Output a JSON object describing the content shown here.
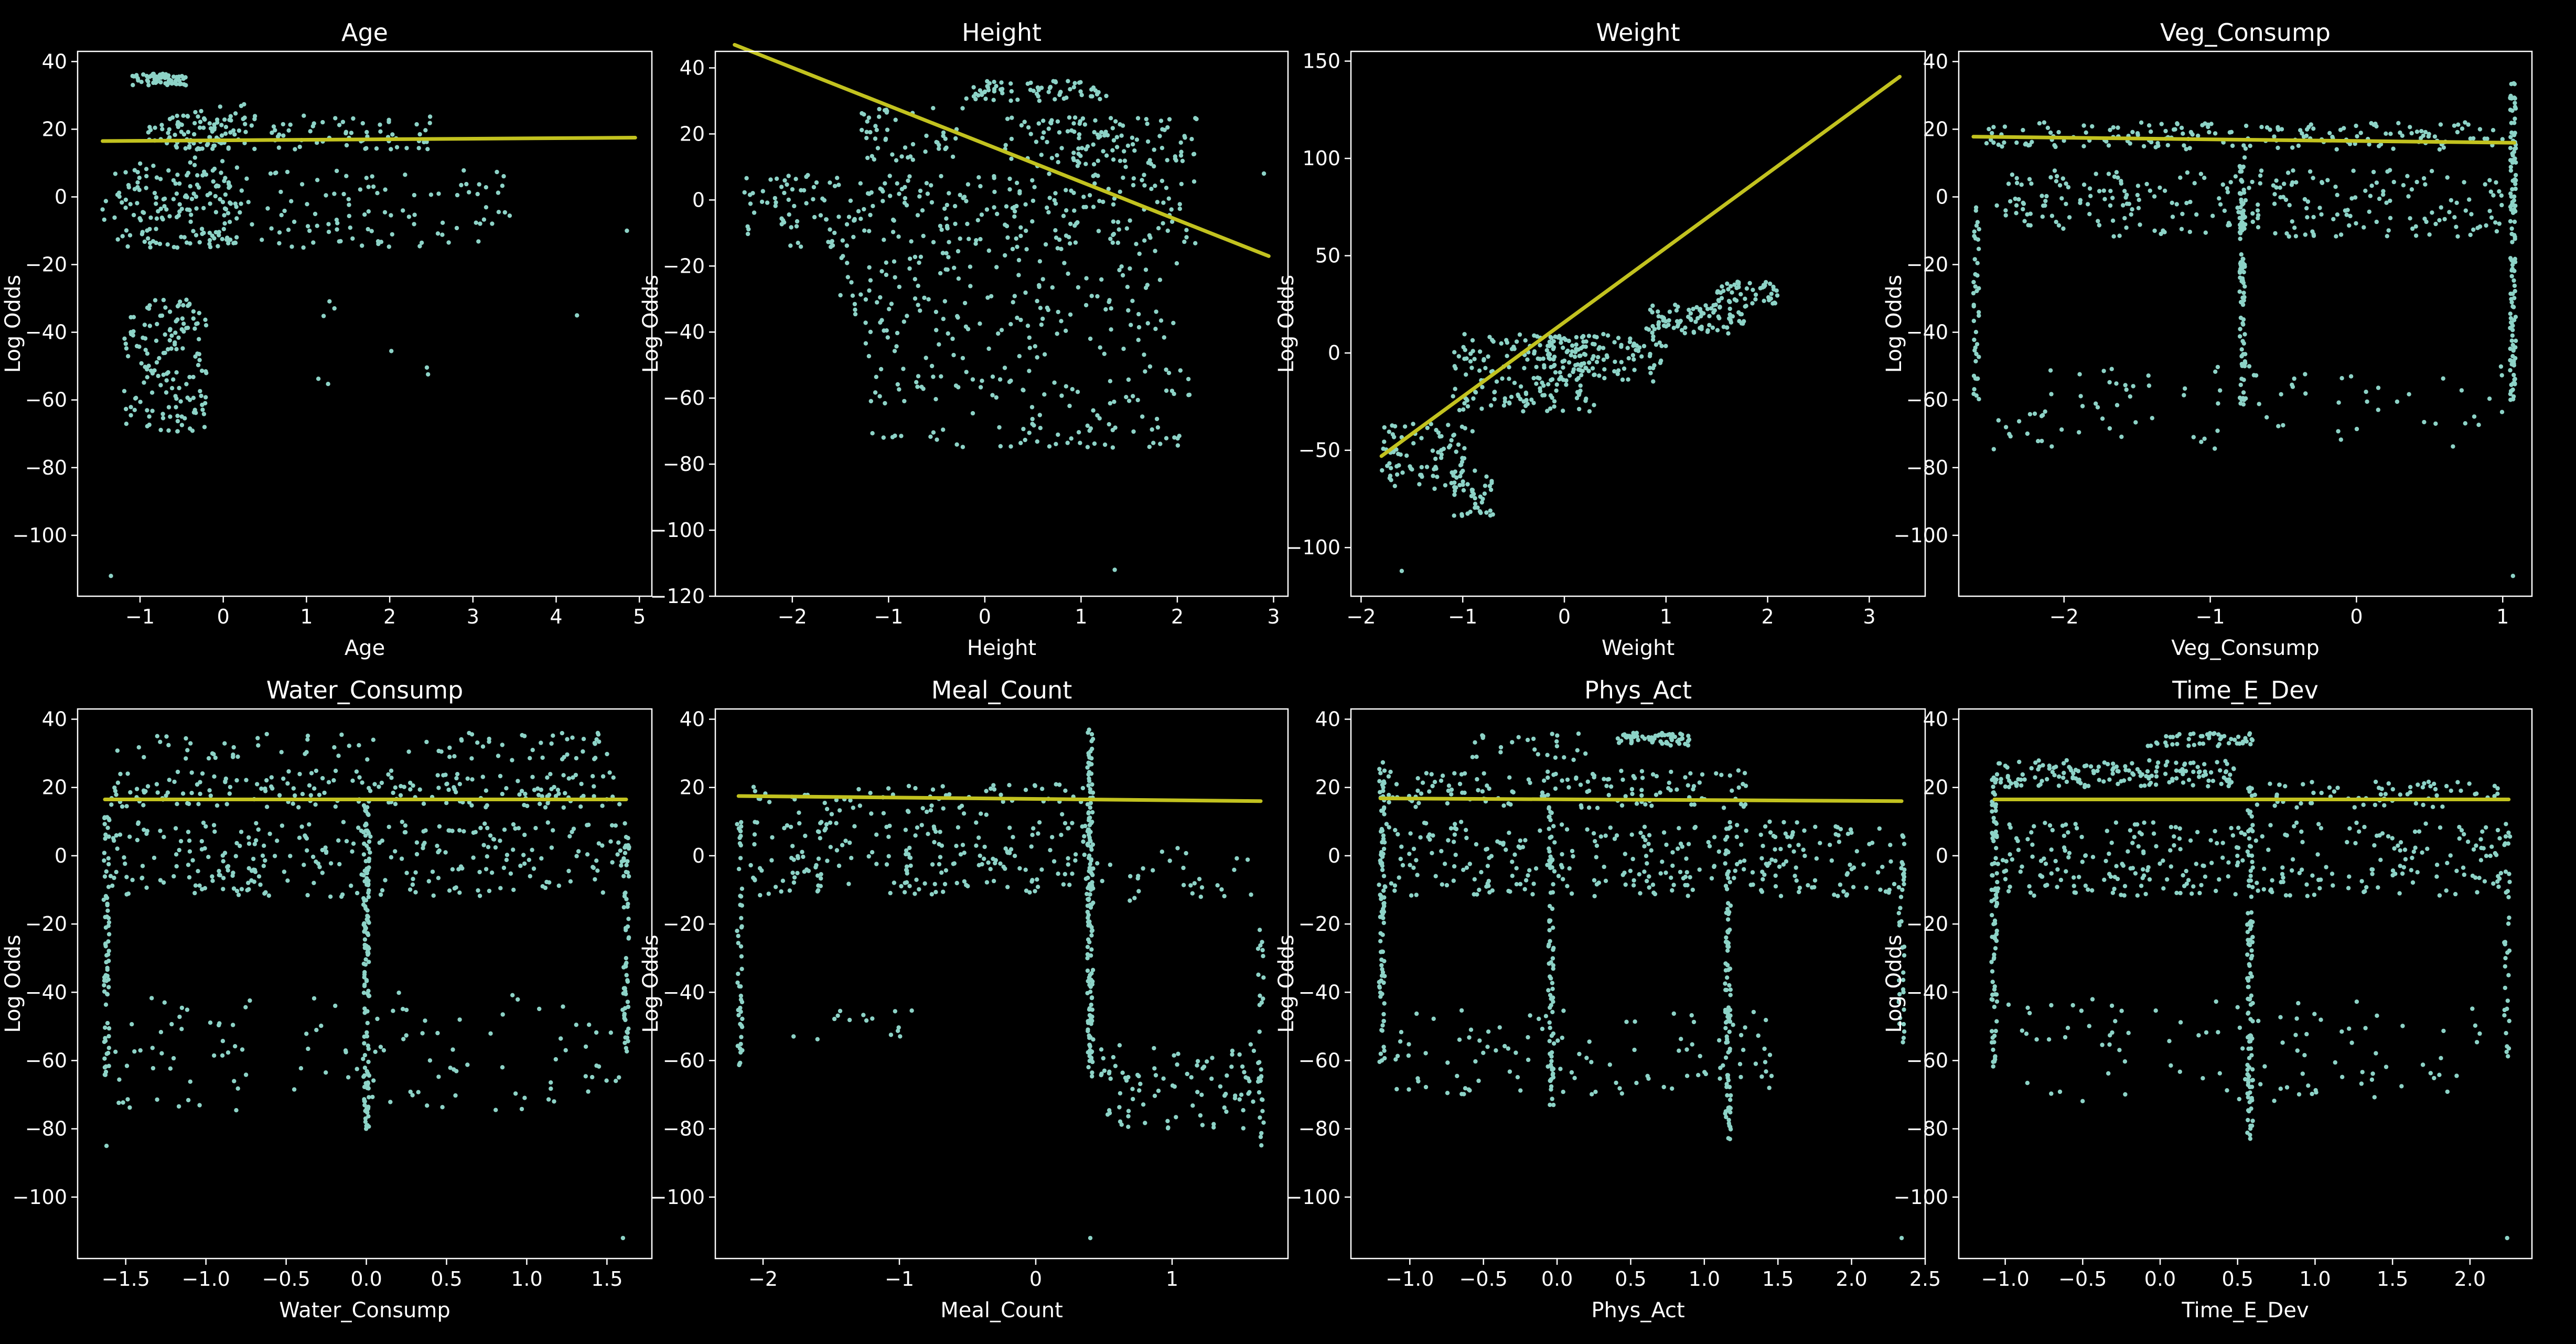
{
  "figure": {
    "background": "#000000",
    "point_color": "#8dd3c7",
    "line_color": "#c2c21f",
    "axis_color": "#ffffff"
  },
  "chart_data": [
    {
      "type": "scatter",
      "title": "Age",
      "xlabel": "Age",
      "ylabel": "Log Odds",
      "xlim": [
        -1.75,
        5.15
      ],
      "ylim": [
        -118,
        43
      ],
      "xticks": [
        -1,
        0,
        1,
        2,
        3,
        4,
        5
      ],
      "xtick_labels": [
        "−1",
        "0",
        "1",
        "2",
        "3",
        "4",
        "5"
      ],
      "yticks": [
        40,
        20,
        0,
        -20,
        -40,
        -60,
        -80,
        -100
      ],
      "ytick_labels": [
        "40",
        "20",
        "0",
        "−20",
        "−40",
        "−60",
        "−80",
        "−100"
      ],
      "fit_line": {
        "x": [
          -1.45,
          4.95
        ],
        "y": [
          16.5,
          17.5
        ]
      },
      "clusters": [
        {
          "x": [
            -1.1,
            -0.45
          ],
          "y": [
            33,
            36.5
          ],
          "n": 60
        },
        {
          "x": [
            -1.45,
            0.1
          ],
          "y": [
            -15,
            10
          ],
          "n": 140
        },
        {
          "x": [
            -1.2,
            -0.2
          ],
          "y": [
            -70,
            -30
          ],
          "n": 150
        },
        {
          "x": [
            -0.9,
            0.4
          ],
          "y": [
            14,
            24
          ],
          "n": 80
        },
        {
          "x": [
            0.0,
            3.5
          ],
          "y": [
            -15,
            8
          ],
          "n": 110
        },
        {
          "x": [
            0.5,
            2.5
          ],
          "y": [
            14,
            24
          ],
          "n": 60
        },
        {
          "x": [
            -0.6,
            0.3
          ],
          "y": [
            -5,
            30
          ],
          "n": 50
        },
        {
          "x": [
            1.0,
            2.5
          ],
          "y": [
            -60,
            -30
          ],
          "n": 8
        }
      ],
      "outliers": [
        {
          "x": [
            -1.35
          ],
          "y": [
            -112
          ]
        },
        {
          "x": [
            4.25
          ],
          "y": [
            -35
          ]
        },
        {
          "x": [
            4.85
          ],
          "y": [
            -10
          ]
        }
      ]
    },
    {
      "type": "scatter",
      "title": "Height",
      "xlabel": "Height",
      "ylabel": "Log Odds",
      "xlim": [
        -2.8,
        3.15
      ],
      "ylim": [
        -120,
        45
      ],
      "xticks": [
        -2,
        -1,
        0,
        1,
        2,
        3
      ],
      "xtick_labels": [
        "−2",
        "−1",
        "0",
        "1",
        "2",
        "3"
      ],
      "yticks": [
        40,
        20,
        0,
        -20,
        -40,
        -60,
        -80,
        -100,
        -120
      ],
      "ytick_labels": [
        "40",
        "20",
        "0",
        "−20",
        "−40",
        "−60",
        "−80",
        "−100",
        "−120"
      ],
      "fit_line": {
        "x": [
          -2.6,
          2.95
        ],
        "y": [
          47,
          -17
        ]
      },
      "clusters": [
        {
          "x": [
            -0.2,
            1.3
          ],
          "y": [
            30,
            36
          ],
          "n": 70
        },
        {
          "x": [
            0.2,
            2.2
          ],
          "y": [
            10,
            25
          ],
          "n": 120
        },
        {
          "x": [
            -1.3,
            -0.2
          ],
          "y": [
            12,
            28
          ],
          "n": 50
        },
        {
          "x": [
            -2.5,
            2.2
          ],
          "y": [
            -15,
            8
          ],
          "n": 260
        },
        {
          "x": [
            -1.5,
            2.0
          ],
          "y": [
            -48,
            -15
          ],
          "n": 160
        },
        {
          "x": [
            -1.2,
            2.2
          ],
          "y": [
            -75,
            -50
          ],
          "n": 120
        }
      ],
      "outliers": [
        {
          "x": [
            1.35
          ],
          "y": [
            -112
          ]
        },
        {
          "x": [
            2.9
          ],
          "y": [
            8
          ]
        }
      ]
    },
    {
      "type": "scatter",
      "title": "Weight",
      "xlabel": "Weight",
      "ylabel": "Log Odds",
      "xlim": [
        -2.1,
        3.55
      ],
      "ylim": [
        -125,
        155
      ],
      "xticks": [
        -2,
        -1,
        0,
        1,
        2,
        3
      ],
      "xtick_labels": [
        "−2",
        "−1",
        "0",
        "1",
        "2",
        "3"
      ],
      "yticks": [
        150,
        100,
        50,
        0,
        -50,
        -100
      ],
      "ytick_labels": [
        "150",
        "100",
        "50",
        "0",
        "−50",
        "−100"
      ],
      "fit_line": {
        "x": [
          -1.8,
          3.3
        ],
        "y": [
          -53,
          142
        ]
      },
      "clusters": [
        {
          "x": [
            -1.8,
            -0.9
          ],
          "y": [
            -70,
            -35
          ],
          "n": 90
        },
        {
          "x": [
            -1.1,
            -0.7
          ],
          "y": [
            -85,
            -60
          ],
          "n": 40
        },
        {
          "x": [
            -1.1,
            0.3
          ],
          "y": [
            -30,
            10
          ],
          "n": 160
        },
        {
          "x": [
            -0.3,
            1.0
          ],
          "y": [
            -15,
            10
          ],
          "n": 120
        },
        {
          "x": [
            0.8,
            1.8
          ],
          "y": [
            10,
            25
          ],
          "n": 90
        },
        {
          "x": [
            1.5,
            2.1
          ],
          "y": [
            25,
            37
          ],
          "n": 50
        }
      ],
      "outliers": [
        {
          "x": [
            -1.6
          ],
          "y": [
            -112
          ]
        }
      ]
    },
    {
      "type": "scatter",
      "title": "Veg_Consump",
      "xlabel": "Veg_Consump",
      "ylabel": "Log Odds",
      "xlim": [
        -2.72,
        1.2
      ],
      "ylim": [
        -118,
        43
      ],
      "xticks": [
        -2,
        -1,
        0,
        1
      ],
      "xtick_labels": [
        "−2",
        "−1",
        "0",
        "1"
      ],
      "yticks": [
        40,
        20,
        0,
        -20,
        -40,
        -60,
        -80,
        -100
      ],
      "ytick_labels": [
        "40",
        "20",
        "0",
        "−20",
        "−40",
        "−60",
        "−80",
        "−100"
      ],
      "fit_line": {
        "x": [
          -2.62,
          1.08
        ],
        "y": [
          17.8,
          16.0
        ]
      },
      "clusters": [
        {
          "x": [
            -2.55,
            1.0
          ],
          "y": [
            14,
            22
          ],
          "n": 180
        },
        {
          "x": [
            -2.55,
            1.0
          ],
          "y": [
            -12,
            8
          ],
          "n": 260
        },
        {
          "x": [
            -2.5,
            1.0
          ],
          "y": [
            -75,
            -50
          ],
          "n": 90
        }
      ],
      "columns": [
        {
          "x": -2.6,
          "y": [
            -62,
            0
          ],
          "n": 40
        },
        {
          "x": -0.78,
          "y": [
            -62,
            12
          ],
          "n": 100
        },
        {
          "x": 1.07,
          "y": [
            -60,
            37
          ],
          "n": 130
        }
      ],
      "outliers": [
        {
          "x": [
            1.07
          ],
          "y": [
            -112
          ]
        }
      ]
    },
    {
      "type": "scatter",
      "title": "Water_Consump",
      "xlabel": "Water_Consump",
      "ylabel": "Log Odds",
      "xlim": [
        -1.8,
        1.78
      ],
      "ylim": [
        -118,
        43
      ],
      "xticks": [
        -1.5,
        -1.0,
        -0.5,
        0.0,
        0.5,
        1.0,
        1.5
      ],
      "xtick_labels": [
        "−1.5",
        "−1.0",
        "−0.5",
        "0.0",
        "0.5",
        "1.0",
        "1.5"
      ],
      "yticks": [
        40,
        20,
        0,
        -20,
        -40,
        -60,
        -80,
        -100
      ],
      "ytick_labels": [
        "40",
        "20",
        "0",
        "−20",
        "−40",
        "−60",
        "−80",
        "−100"
      ],
      "fit_line": {
        "x": [
          -1.63,
          1.62
        ],
        "y": [
          16.5,
          16.5
        ]
      },
      "clusters": [
        {
          "x": [
            -1.6,
            1.6
          ],
          "y": [
            28,
            36
          ],
          "n": 80
        },
        {
          "x": [
            -1.6,
            1.6
          ],
          "y": [
            14,
            25
          ],
          "n": 200
        },
        {
          "x": [
            -1.6,
            1.6
          ],
          "y": [
            -12,
            10
          ],
          "n": 280
        },
        {
          "x": [
            -1.6,
            1.6
          ],
          "y": [
            -75,
            -40
          ],
          "n": 120
        }
      ],
      "columns": [
        {
          "x": -1.62,
          "y": [
            -65,
            20
          ],
          "n": 70
        },
        {
          "x": 0.0,
          "y": [
            -80,
            15
          ],
          "n": 130
        },
        {
          "x": 1.62,
          "y": [
            -62,
            10
          ],
          "n": 60
        }
      ],
      "outliers": [
        {
          "x": [
            1.6
          ],
          "y": [
            -112
          ]
        },
        {
          "x": [
            -1.62
          ],
          "y": [
            -85
          ]
        }
      ]
    },
    {
      "type": "scatter",
      "title": "Meal_Count",
      "xlabel": "Meal_Count",
      "ylabel": "Log Odds",
      "xlim": [
        -2.35,
        1.85
      ],
      "ylim": [
        -118,
        43
      ],
      "xticks": [
        -2,
        -1,
        0,
        1
      ],
      "xtick_labels": [
        "−2",
        "−1",
        "0",
        "1"
      ],
      "yticks": [
        40,
        20,
        0,
        -20,
        -40,
        -60,
        -80,
        -100
      ],
      "ytick_labels": [
        "40",
        "20",
        "0",
        "−20",
        "−40",
        "−60",
        "−80",
        "−100"
      ],
      "fit_line": {
        "x": [
          -2.18,
          1.65
        ],
        "y": [
          17.5,
          16.0
        ]
      },
      "clusters": [
        {
          "x": [
            -2.1,
            0.4
          ],
          "y": [
            12,
            21
          ],
          "n": 70
        },
        {
          "x": [
            -2.1,
            0.4
          ],
          "y": [
            -12,
            10
          ],
          "n": 200
        },
        {
          "x": [
            0.45,
            1.6
          ],
          "y": [
            -15,
            5
          ],
          "n": 30
        },
        {
          "x": [
            0.45,
            1.6
          ],
          "y": [
            -80,
            -55
          ],
          "n": 90
        },
        {
          "x": [
            -1.9,
            -0.9
          ],
          "y": [
            -55,
            -45
          ],
          "n": 15
        }
      ],
      "columns": [
        {
          "x": -2.17,
          "y": [
            -62,
            10
          ],
          "n": 50
        },
        {
          "x": 0.4,
          "y": [
            -65,
            37
          ],
          "n": 160
        },
        {
          "x": 1.65,
          "y": [
            -85,
            -20
          ],
          "n": 30
        }
      ],
      "outliers": [
        {
          "x": [
            0.4
          ],
          "y": [
            -112
          ]
        }
      ]
    },
    {
      "type": "scatter",
      "title": "Phys_Act",
      "xlabel": "Phys_Act",
      "ylabel": "Log Odds",
      "xlim": [
        -1.4,
        2.5
      ],
      "ylim": [
        -118,
        43
      ],
      "xticks": [
        -1.0,
        -0.5,
        0.0,
        0.5,
        1.0,
        1.5,
        2.0,
        2.5
      ],
      "xtick_labels": [
        "−1.0",
        "−0.5",
        "0.0",
        "0.5",
        "1.0",
        "1.5",
        "2.0",
        "2.5"
      ],
      "yticks": [
        40,
        20,
        0,
        -20,
        -40,
        -60,
        -80,
        -100
      ],
      "ytick_labels": [
        "40",
        "20",
        "0",
        "−20",
        "−40",
        "−60",
        "−80",
        "−100"
      ],
      "fit_line": {
        "x": [
          -1.2,
          2.34
        ],
        "y": [
          16.8,
          16.0
        ]
      },
      "clusters": [
        {
          "x": [
            0.4,
            0.9
          ],
          "y": [
            32,
            36
          ],
          "n": 60
        },
        {
          "x": [
            -1.2,
            1.3
          ],
          "y": [
            14,
            25
          ],
          "n": 140
        },
        {
          "x": [
            -1.2,
            2.3
          ],
          "y": [
            -12,
            10
          ],
          "n": 300
        },
        {
          "x": [
            -1.1,
            1.5
          ],
          "y": [
            -70,
            -45
          ],
          "n": 110
        },
        {
          "x": [
            -0.6,
            0.2
          ],
          "y": [
            28,
            36
          ],
          "n": 25
        }
      ],
      "columns": [
        {
          "x": -1.19,
          "y": [
            -62,
            28
          ],
          "n": 90
        },
        {
          "x": -0.04,
          "y": [
            -75,
            15
          ],
          "n": 80
        },
        {
          "x": 1.16,
          "y": [
            -85,
            10
          ],
          "n": 90
        },
        {
          "x": 2.34,
          "y": [
            -60,
            10
          ],
          "n": 40
        }
      ],
      "outliers": [
        {
          "x": [
            2.34
          ],
          "y": [
            -112
          ]
        }
      ]
    },
    {
      "type": "scatter",
      "title": "Time_E_Dev",
      "xlabel": "Time_E_Dev",
      "ylabel": "Log Odds",
      "xlim": [
        -1.3,
        2.4
      ],
      "ylim": [
        -118,
        43
      ],
      "xticks": [
        -1.0,
        -0.5,
        0.0,
        0.5,
        1.0,
        1.5,
        2.0
      ],
      "xtick_labels": [
        "−1.0",
        "−0.5",
        "0.0",
        "0.5",
        "1.0",
        "1.5",
        "2.0"
      ],
      "yticks": [
        40,
        20,
        0,
        -20,
        -40,
        -60,
        -80,
        -100
      ],
      "ytick_labels": [
        "40",
        "20",
        "0",
        "−20",
        "−40",
        "−60",
        "−80",
        "−100"
      ],
      "fit_line": {
        "x": [
          -1.07,
          2.25
        ],
        "y": [
          16.5,
          16.5
        ]
      },
      "clusters": [
        {
          "x": [
            -0.1,
            0.6
          ],
          "y": [
            32,
            36
          ],
          "n": 50
        },
        {
          "x": [
            -1.05,
            0.5
          ],
          "y": [
            20,
            28
          ],
          "n": 160
        },
        {
          "x": [
            0.6,
            2.2
          ],
          "y": [
            14,
            22
          ],
          "n": 70
        },
        {
          "x": [
            -1.05,
            2.2
          ],
          "y": [
            -12,
            10
          ],
          "n": 300
        },
        {
          "x": [
            -1.0,
            2.1
          ],
          "y": [
            -72,
            -42
          ],
          "n": 100
        }
      ],
      "columns": [
        {
          "x": -1.07,
          "y": [
            -65,
            25
          ],
          "n": 90
        },
        {
          "x": 0.58,
          "y": [
            -85,
            20
          ],
          "n": 110
        },
        {
          "x": 2.24,
          "y": [
            -62,
            10
          ],
          "n": 35
        }
      ],
      "outliers": [
        {
          "x": [
            2.24
          ],
          "y": [
            -112
          ]
        }
      ]
    }
  ]
}
